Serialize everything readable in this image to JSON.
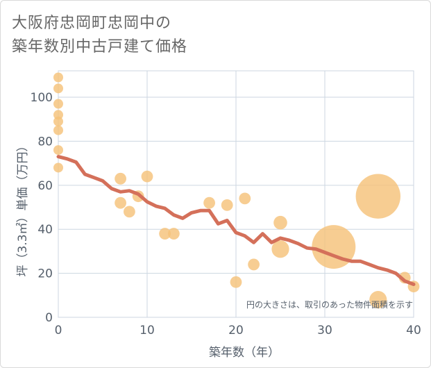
{
  "title_lines": [
    "大阪府忠岡町忠岡中の",
    "築年数別中古戸建て価格"
  ],
  "chart_data": {
    "type": "scatter",
    "xlabel": "築年数（年）",
    "ylabel": "坪（3.3㎡）単価（万円）",
    "xlim": [
      0,
      40
    ],
    "ylim": [
      0,
      112
    ],
    "xticks": [
      0,
      10,
      20,
      30,
      40
    ],
    "yticks": [
      0,
      20,
      40,
      60,
      80,
      100
    ],
    "grid": true,
    "note": "円の大きさは、取引のあった物件面積を示す",
    "colors": {
      "points": "#f5c27a",
      "trend": "#d4705a",
      "grid": "#ccd6e0"
    },
    "points": [
      {
        "x": 0,
        "y": 109,
        "size": 1
      },
      {
        "x": 0,
        "y": 104,
        "size": 1
      },
      {
        "x": 0,
        "y": 97,
        "size": 1
      },
      {
        "x": 0,
        "y": 92,
        "size": 1
      },
      {
        "x": 0,
        "y": 89,
        "size": 1
      },
      {
        "x": 0,
        "y": 85,
        "size": 1
      },
      {
        "x": 0,
        "y": 76,
        "size": 1
      },
      {
        "x": 0,
        "y": 68,
        "size": 1
      },
      {
        "x": 7,
        "y": 63,
        "size": 1.2
      },
      {
        "x": 7,
        "y": 52,
        "size": 1.2
      },
      {
        "x": 8,
        "y": 48,
        "size": 1.2
      },
      {
        "x": 9,
        "y": 55,
        "size": 1.2
      },
      {
        "x": 10,
        "y": 64,
        "size": 1.2
      },
      {
        "x": 12,
        "y": 38,
        "size": 1.2
      },
      {
        "x": 13,
        "y": 38,
        "size": 1.2
      },
      {
        "x": 17,
        "y": 52,
        "size": 1.2
      },
      {
        "x": 19,
        "y": 51,
        "size": 1.2
      },
      {
        "x": 20,
        "y": 16,
        "size": 1.2
      },
      {
        "x": 21,
        "y": 54,
        "size": 1.2
      },
      {
        "x": 22,
        "y": 24,
        "size": 1.2
      },
      {
        "x": 25,
        "y": 43,
        "size": 1.4
      },
      {
        "x": 25,
        "y": 31,
        "size": 1.8
      },
      {
        "x": 31,
        "y": 32,
        "size": 4.5
      },
      {
        "x": 36,
        "y": 55,
        "size": 4.6
      },
      {
        "x": 36,
        "y": 8,
        "size": 1.8
      },
      {
        "x": 39,
        "y": 18,
        "size": 1.2
      },
      {
        "x": 40,
        "y": 14,
        "size": 1.2
      }
    ],
    "trend": {
      "x": [
        0,
        1,
        2,
        3,
        4,
        5,
        6,
        7,
        8,
        9,
        10,
        11,
        12,
        13,
        14,
        15,
        16,
        17,
        18,
        19,
        20,
        21,
        22,
        23,
        24,
        25,
        26,
        27,
        28,
        29,
        30,
        31,
        32,
        33,
        34,
        35,
        36,
        37,
        38,
        39,
        40
      ],
      "y": [
        73,
        72,
        70.5,
        65,
        63.5,
        62,
        58.5,
        57,
        57.5,
        56,
        52.5,
        50.5,
        49.5,
        46.5,
        45,
        47.5,
        48.5,
        48.5,
        42.5,
        44,
        38.5,
        37,
        34,
        38,
        34,
        36,
        35,
        33.5,
        31.5,
        31,
        29.5,
        28,
        26.5,
        25.5,
        25.5,
        24,
        22.5,
        21.5,
        20,
        16.5,
        15
      ]
    }
  }
}
